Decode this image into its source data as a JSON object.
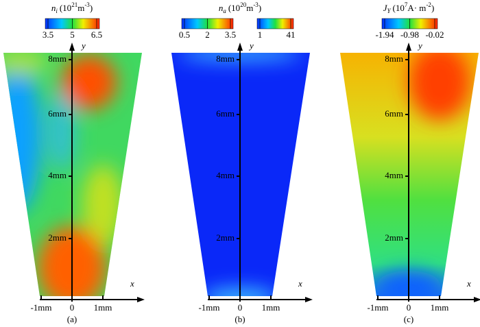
{
  "panels": [
    {
      "label": "(a)",
      "title": {
        "symbol": "n",
        "sub": "i",
        "base": "(10",
        "exp": "21",
        "unit": "m",
        "unit_exp": "-3",
        "close": ")"
      },
      "colorbars": [
        [
          "3.5",
          "5",
          "6.5"
        ]
      ],
      "x_axis": "x",
      "y_axis": "y",
      "x_ticks": [
        "-1mm",
        "0",
        "1mm"
      ],
      "y_ticks": [
        "2mm",
        "4mm",
        "6mm",
        "8mm"
      ]
    },
    {
      "label": "(b)",
      "title": {
        "symbol": "n",
        "sub": "a",
        "base": "(10",
        "exp": "20",
        "unit": "m",
        "unit_exp": "-3",
        "close": ")"
      },
      "colorbars": [
        [
          "0.5",
          "2",
          "3.5"
        ],
        [
          "1",
          "41"
        ]
      ],
      "x_axis": "x",
      "y_axis": "y",
      "x_ticks": [
        "-1mm",
        "0",
        "1mm"
      ],
      "y_ticks": [
        "2mm",
        "4mm",
        "6mm",
        "8mm"
      ]
    },
    {
      "label": "(c)",
      "title": {
        "symbol": "J",
        "sub": "Y",
        "base": "(10",
        "exp": "7",
        "unit": "A· m",
        "unit_exp": "-2",
        "close": ")"
      },
      "colorbars": [
        [
          "-1.94",
          "-0.98",
          "-0.02"
        ]
      ],
      "x_axis": "x",
      "y_axis": "y",
      "x_ticks": [
        "-1mm",
        "0",
        "1mm"
      ],
      "y_ticks": [
        "2mm",
        "4mm",
        "6mm",
        "8mm"
      ]
    }
  ]
}
